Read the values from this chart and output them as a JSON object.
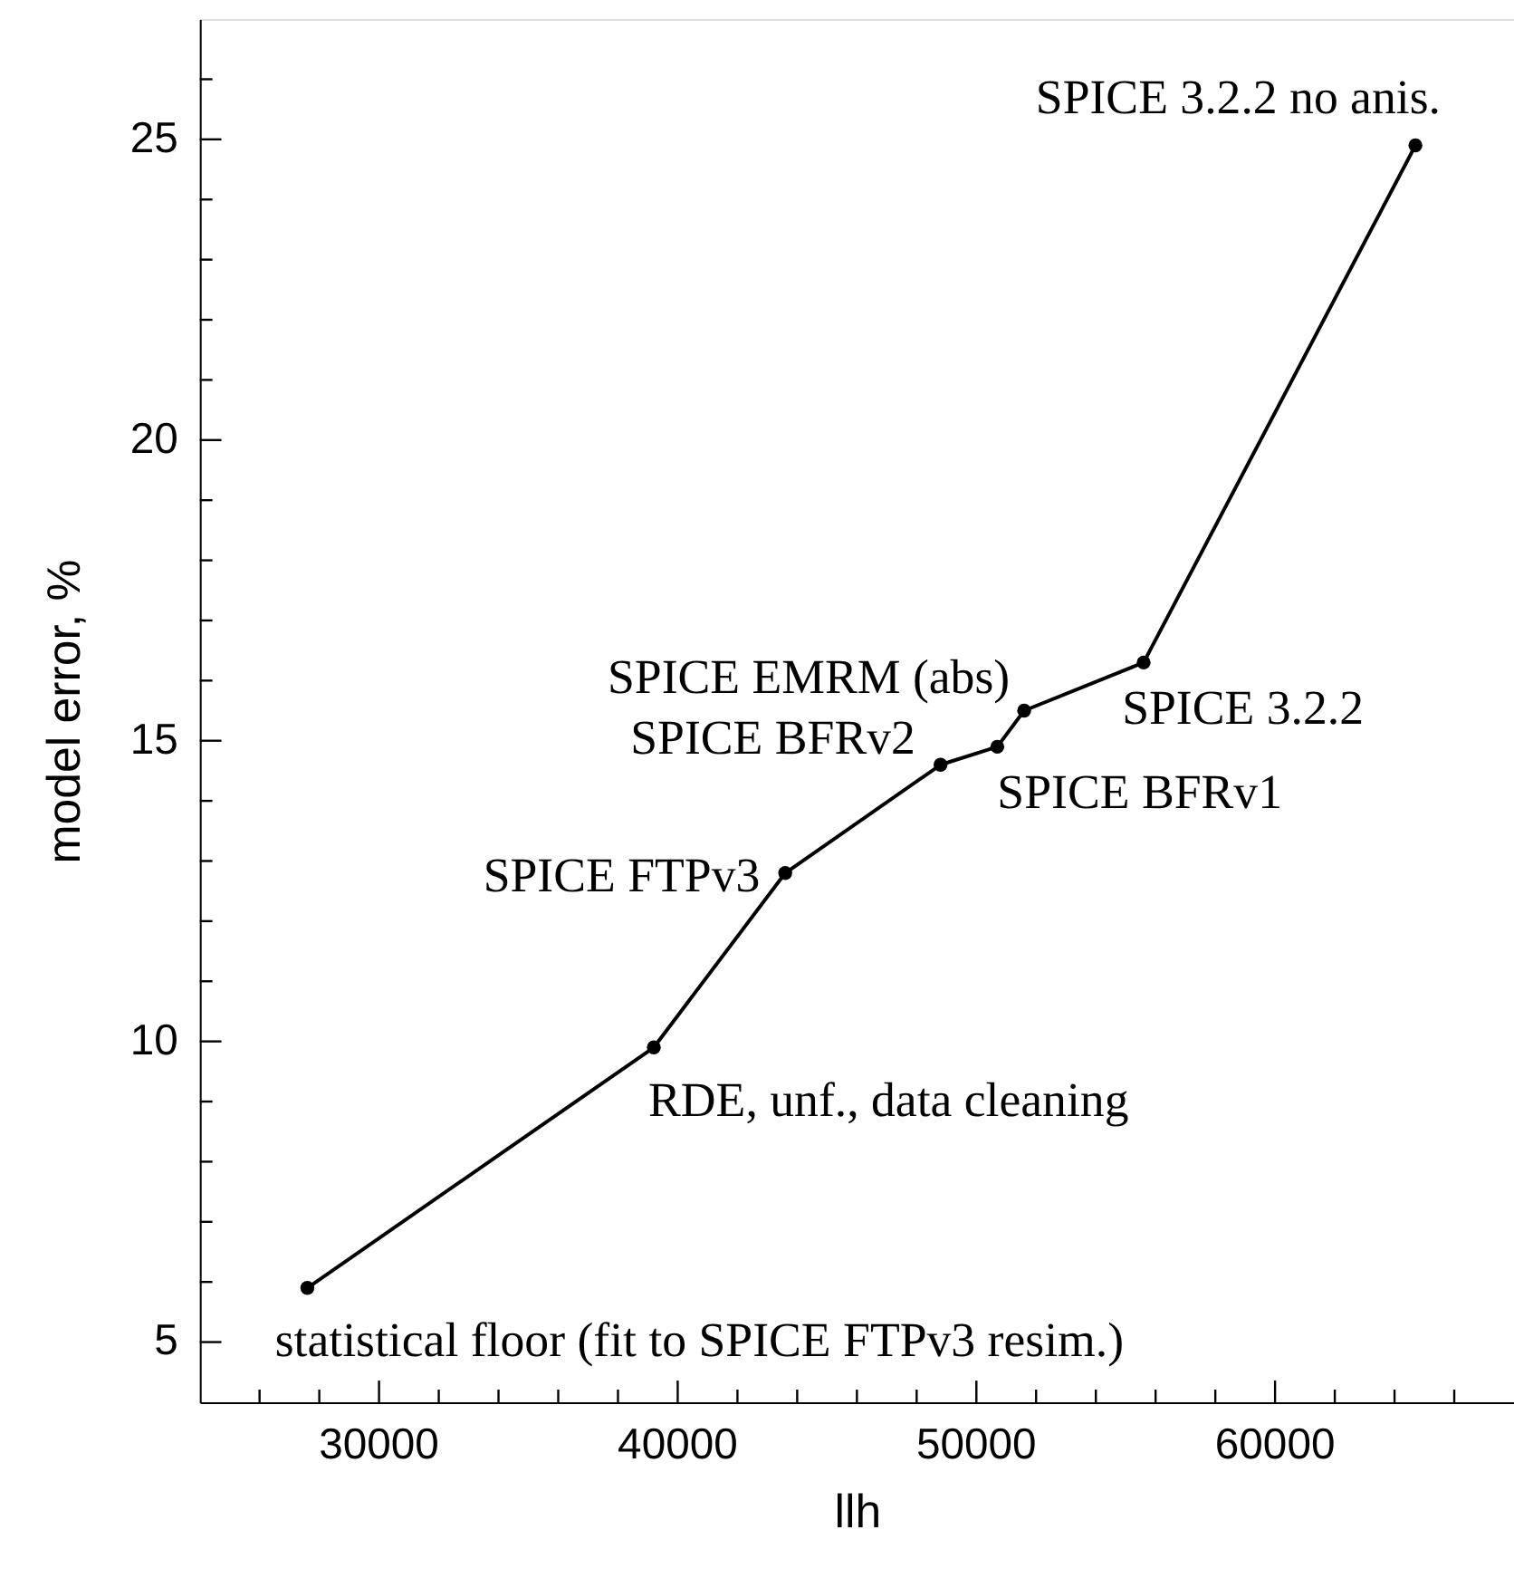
{
  "chart_data": {
    "type": "line",
    "xlabel": "llh",
    "ylabel": "model error, %",
    "x": [
      27600,
      39200,
      43600,
      48800,
      50700,
      51600,
      55600,
      64700
    ],
    "series": [
      {
        "color": "#000000",
        "values": [
          5.9,
          9.9,
          12.8,
          14.6,
          14.9,
          15.5,
          16.3,
          24.9
        ]
      }
    ],
    "marker": "circle",
    "line_style": "solid",
    "grid": false,
    "xlim": [
      24000,
      68000
    ],
    "xticks": [
      {
        "value": 26000,
        "label": null
      },
      {
        "value": 28000,
        "label": null
      },
      30000,
      {
        "value": 32000,
        "label": null
      },
      {
        "value": 34000,
        "label": null
      },
      {
        "value": 36000,
        "label": null
      },
      {
        "value": 38000,
        "label": null
      },
      40000,
      {
        "value": 42000,
        "label": null
      },
      {
        "value": 44000,
        "label": null
      },
      {
        "value": 46000,
        "label": null
      },
      {
        "value": 48000,
        "label": null
      },
      50000,
      {
        "value": 52000,
        "label": null
      },
      {
        "value": 54000,
        "label": null
      },
      {
        "value": 56000,
        "label": null
      },
      {
        "value": 58000,
        "label": null
      },
      60000,
      {
        "value": 62000,
        "label": null
      },
      {
        "value": 64000,
        "label": null
      },
      {
        "value": 66000,
        "label": null
      }
    ],
    "ylim": [
      4,
      27
    ],
    "yticks": [
      5,
      {
        "value": 6,
        "label": null
      },
      {
        "value": 7,
        "label": null
      },
      {
        "value": 8,
        "label": null
      },
      {
        "value": 9,
        "label": null
      },
      10,
      {
        "value": 11,
        "label": null
      },
      {
        "value": 12,
        "label": null
      },
      {
        "value": 13,
        "label": null
      },
      {
        "value": 14,
        "label": null
      },
      15,
      {
        "value": 16,
        "label": null
      },
      {
        "value": 17,
        "label": null
      },
      {
        "value": 18,
        "label": null
      },
      {
        "value": 19,
        "label": null
      },
      20,
      {
        "value": 21,
        "label": null
      },
      {
        "value": 22,
        "label": null
      },
      {
        "value": 23,
        "label": null
      },
      {
        "value": 24,
        "label": null
      },
      25,
      {
        "value": 26,
        "label": null
      }
    ],
    "annotations": [
      {
        "text": "statistical floor (fit to SPICE FTPv3 resim.)",
        "x": 27600,
        "y": 5.9
      },
      {
        "text": "RDE, unf., data cleaning",
        "x": 39200,
        "y": 9.9
      },
      {
        "text": "SPICE FTPv3",
        "x": 43600,
        "y": 12.8
      },
      {
        "text": "SPICE BFRv2",
        "x": 48800,
        "y": 14.6
      },
      {
        "text": "SPICE BFRv1",
        "x": 50700,
        "y": 14.9
      },
      {
        "text": "SPICE EMRM (abs)",
        "x": 51600,
        "y": 15.5
      },
      {
        "text": "SPICE 3.2.2",
        "x": 55600,
        "y": 16.3
      },
      {
        "text": "SPICE 3.2.2 no anis.",
        "x": 64700,
        "y": 24.9
      }
    ]
  }
}
